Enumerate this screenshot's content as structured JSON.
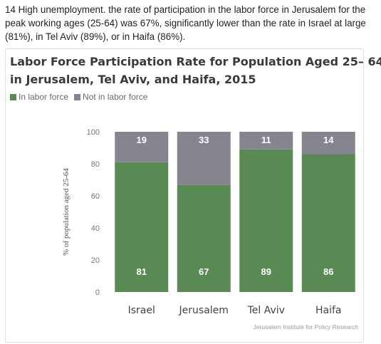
{
  "intro_text": "14 High unemployment. the rate of participation in the labor force in Jerusalem for the peak working ages (25-64) was 67%, significantly lower than the rate in Israel at large (81%), in Tel Aviv (89%), or in Haifa (86%).",
  "colors": {
    "in_labor_force": "#5a8a53",
    "not_in_labor_force": "#85858f",
    "title": "#3a3a3a"
  },
  "chart_data": {
    "type": "bar",
    "stacked": true,
    "title_lines": [
      "Labor Force Participation Rate for Population Aged 25– 64",
      "in Jerusalem, Tel Aviv, and Haifa, 2015"
    ],
    "ylabel": "% of population aged 25-64",
    "xlabel": "",
    "ylim": [
      0,
      100
    ],
    "yticks": [
      0,
      20,
      40,
      60,
      80,
      100
    ],
    "grid": false,
    "legend_position": "top-left",
    "categories": [
      "Israel",
      "Jerusalem",
      "Tel Aviv",
      "Haifa"
    ],
    "series": [
      {
        "name": "In labor force",
        "values": [
          81,
          67,
          89,
          86
        ]
      },
      {
        "name": "Not in labor force",
        "values": [
          19,
          33,
          11,
          14
        ]
      }
    ],
    "source": "Jerusalem Institute for Policy Research"
  }
}
